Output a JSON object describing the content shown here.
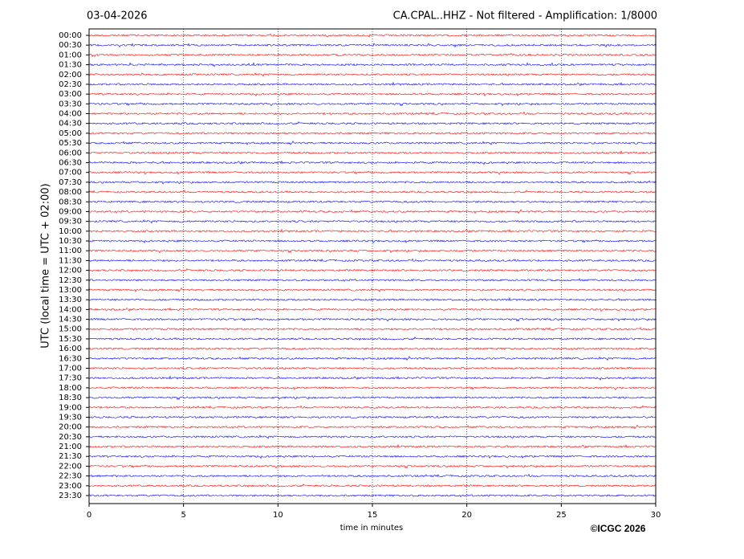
{
  "chart_data": {
    "type": "helicorder",
    "date": "03-04-2026",
    "title": "CA.CPAL..HHZ - Not filtered - Amplification: 1/8000",
    "y_label": "UTC (local time = UTC + 02:00)",
    "x_label": "time in minutes",
    "credit": "©ICGC 2026",
    "categories": [
      "00:00",
      "00:30",
      "01:00",
      "01:30",
      "02:00",
      "02:30",
      "03:00",
      "03:30",
      "04:00",
      "04:30",
      "05:00",
      "05:30",
      "06:00",
      "06:30",
      "07:00",
      "07:30",
      "08:00",
      "08:30",
      "09:00",
      "09:30",
      "10:00",
      "10:30",
      "11:00",
      "11:30",
      "12:00",
      "12:30",
      "13:00",
      "13:30",
      "14:00",
      "14:30",
      "15:00",
      "15:30",
      "16:00",
      "16:30",
      "17:00",
      "17:30",
      "18:00",
      "18:30",
      "19:00",
      "19:30",
      "20:00",
      "20:30",
      "21:00",
      "21:30",
      "22:00",
      "22:30",
      "23:00",
      "23:30"
    ],
    "colors": [
      "#ff0000",
      "#0000ff"
    ],
    "xlim": [
      0,
      30
    ],
    "xticks": [
      0,
      5,
      10,
      15,
      20,
      25,
      30
    ],
    "grid": true
  }
}
